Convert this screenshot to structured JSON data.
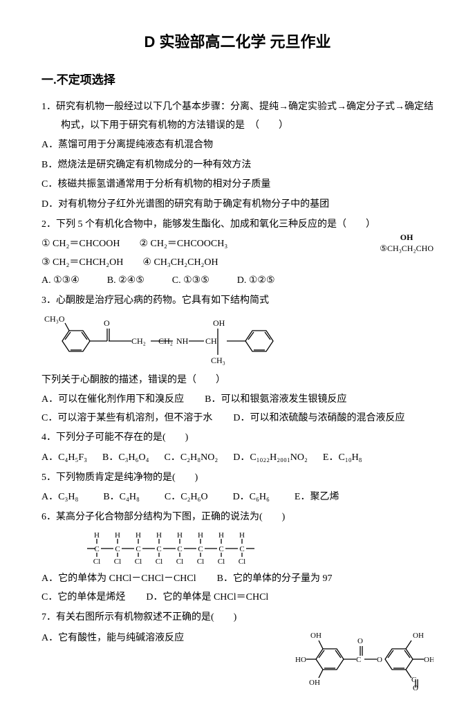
{
  "title": "D 实验部高二化学 元旦作业",
  "section1": "一.不定项选择",
  "q1": {
    "stem": "1．研究有机物一般经过以下几个基本步骤：分离、提纯→确定实验式→确定分子式→确定结构式，以下用于研究有机物的方法错误的是　（　　）",
    "A": "A．蒸馏可用于分离提纯液态有机混合物",
    "B": "B．燃烧法是研究确定有机物成分的一种有效方法",
    "C": "C．核磁共振氢谱通常用于分析有机物的相对分子质量",
    "D": "D．对有机物分子红外光谱图的研究有助于确定有机物分子中的基团"
  },
  "q2": {
    "stem": "2．下列 5 个有机化合物中，能够发生酯化、加成和氧化三种反应的是（　　）",
    "c1": "① CH₂＝CHCOOH",
    "c2": "② CH₂＝CHCOOCH₃",
    "c3": "③ CH₂＝CHCH₂OH",
    "c4": "④ CH₃CH₂CH₂OH",
    "fig_top": "OH",
    "fig_bot": "⑤CH₃CH₂CHO",
    "A": "A. ①③④",
    "B": "B. ②④⑤",
    "C": "C. ①③⑤",
    "D": "D. ①②⑤"
  },
  "q3": {
    "stem": "3．心酮胺是治疗冠心病的药物。它具有如下结构简式",
    "after": "下列关于心酮胺的描述，错误的是（　　）",
    "A": "A．可以在催化剂作用下和溴反应",
    "B": "B．可以和银氨溶液发生银镜反应",
    "C": "C．可以溶于某些有机溶剂，但不溶于水",
    "D": "D．可以和浓硫酸与浓硝酸的混合液反应",
    "fig": {
      "labels": [
        "CH₃O",
        "O",
        "CH₂",
        "CH₂",
        "NH",
        "CH",
        "OH",
        "CH₃"
      ]
    }
  },
  "q4": {
    "stem": "4．下列分子可能不存在的是(　　)",
    "A": "A．C₄H₅F₃",
    "B": "B．C₃H₆O₄",
    "C": "C．C₂H₈NO₂",
    "D": "D．C₁₀₂₂H₂₀₀₁NO₂",
    "E": "E．C₁₀H₈"
  },
  "q5": {
    "stem": "5．下列物质肯定是纯净物的是(　　)",
    "A": "A．C₃H₈",
    "B": "B．C₄H₈",
    "C": "C．C₂H₆O",
    "D": "D．C₆H₆",
    "E": "E．聚乙烯"
  },
  "q6": {
    "stem": "6．某高分子化合物部分结构为下图，正确的说法为(　　)",
    "A": "A．它的单体为 CHCl－CHCl－CHCl",
    "B": "B．它的单体的分子量为 97",
    "C": "C．它的单体是烯烃",
    "D": "D．它的单体是 CHCl＝CHCl",
    "fig": {
      "top": "H",
      "bot": "Cl",
      "count": 8
    }
  },
  "q7": {
    "stem": "7．有关右图所示有机物叙述不正确的是(　　)",
    "A": "A．它有酸性，能与纯碱溶液反应",
    "fig": {
      "labels": [
        "OH",
        "HO",
        "OH",
        "C",
        "O",
        "O",
        "OH",
        "C",
        "O",
        "OH"
      ]
    }
  }
}
